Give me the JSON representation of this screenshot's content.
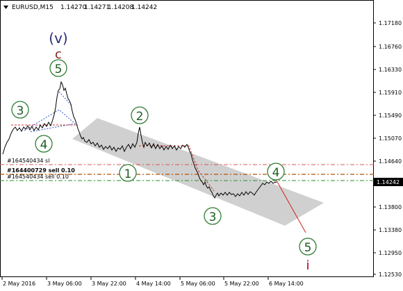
{
  "header": {
    "symbol": "EURUSD,M15",
    "open": "1.14270",
    "high": "1.14271",
    "low": "1.14208",
    "close": "1.14242"
  },
  "price_axis": {
    "labels": [
      "1.17180",
      "1.16760",
      "1.16330",
      "1.15910",
      "1.15490",
      "1.15070",
      "1.14640",
      "1.14242",
      "1.13800",
      "1.13380",
      "1.12950",
      "1.12530"
    ],
    "current_price": "1.14242"
  },
  "time_axis": {
    "labels": [
      "2 May 2016",
      "3 May 06:00",
      "3 May 22:00",
      "4 May 14:00",
      "5 May 06:00",
      "5 May 22:00",
      "6 May 14:00"
    ]
  },
  "annotations": {
    "wave_v_label": "(v)",
    "wave_c_label": "c",
    "wave_i_label": "i",
    "circled": [
      "5",
      "3",
      "4",
      "2",
      "1",
      "3",
      "4",
      "5"
    ]
  },
  "order_lines": [
    {
      "label": "#164540434 sl"
    },
    {
      "label": "#164400729 sell 0.10"
    },
    {
      "label": "#164540434 sell 0.10"
    }
  ],
  "colors": {
    "background": "#ffffff",
    "price_line": "#000000",
    "channel_fill": "#c8c8c8",
    "circle_stroke": "#2e7d32",
    "circle_text": "#1b5e20",
    "wave_v": "#2b2b7a",
    "wave_c": "#8b1a1a",
    "wave_i": "#b00020",
    "sl_line": "#e05050",
    "order_line_1": "#b05000",
    "order_line_2": "#2e8b2e",
    "projection": "#d02020",
    "price_tag_bg": "#000000",
    "price_tag_text": "#ffffff"
  }
}
